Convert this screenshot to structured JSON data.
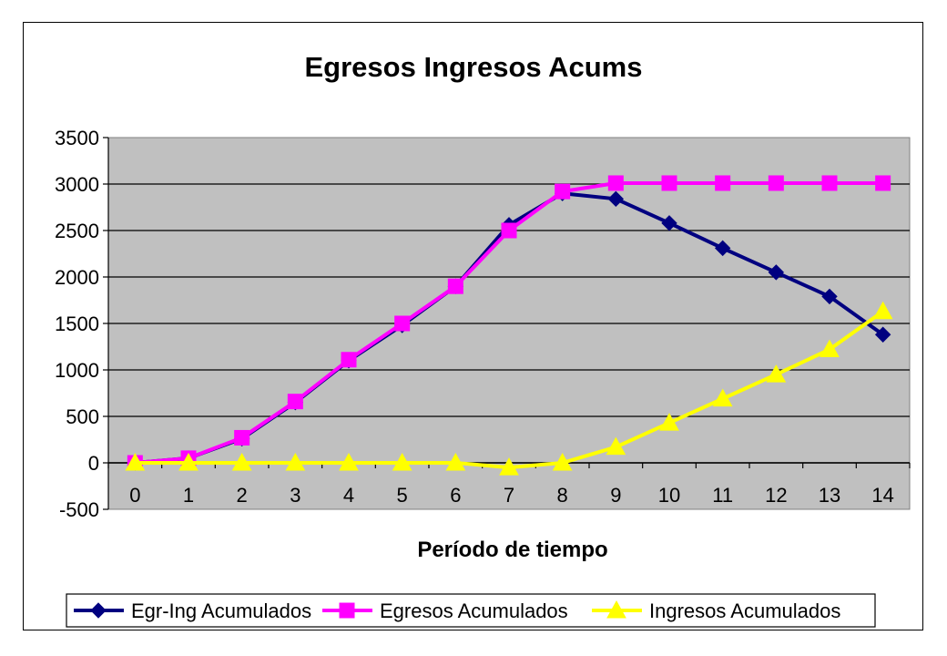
{
  "chart_data": {
    "type": "line",
    "title": "Egresos Ingresos Acums",
    "xlabel": "Período de tiempo",
    "ylabel": "",
    "categories": [
      "0",
      "1",
      "2",
      "3",
      "4",
      "5",
      "6",
      "7",
      "8",
      "9",
      "10",
      "11",
      "12",
      "13",
      "14"
    ],
    "ylim": [
      -500,
      3500
    ],
    "yticks": [
      "-500",
      "0",
      "500",
      "1000",
      "1500",
      "2000",
      "2500",
      "3000",
      "3500"
    ],
    "yticks_values": [
      -500,
      0,
      500,
      1000,
      1500,
      2000,
      2500,
      3000,
      3500
    ],
    "grid": true,
    "legend_position": "bottom",
    "plot_background": "#c0c0c0",
    "series": [
      {
        "name": "Egr-Ing Acumulados",
        "color": "#000080",
        "marker": "diamond",
        "values": [
          0,
          50,
          260,
          650,
          1100,
          1480,
          1900,
          2560,
          2900,
          2840,
          2580,
          2310,
          2050,
          1790,
          1380
        ]
      },
      {
        "name": "Egresos Acumulados",
        "color": "#ff00ff",
        "marker": "square",
        "values": [
          0,
          50,
          270,
          660,
          1110,
          1500,
          1900,
          2500,
          2920,
          3010,
          3010,
          3010,
          3010,
          3010,
          3010
        ]
      },
      {
        "name": "Ingresos Acumulados",
        "color": "#ffff00",
        "marker": "triangle",
        "values": [
          0,
          0,
          0,
          0,
          0,
          0,
          0,
          -50,
          0,
          170,
          430,
          690,
          950,
          1220,
          1630
        ]
      }
    ]
  }
}
